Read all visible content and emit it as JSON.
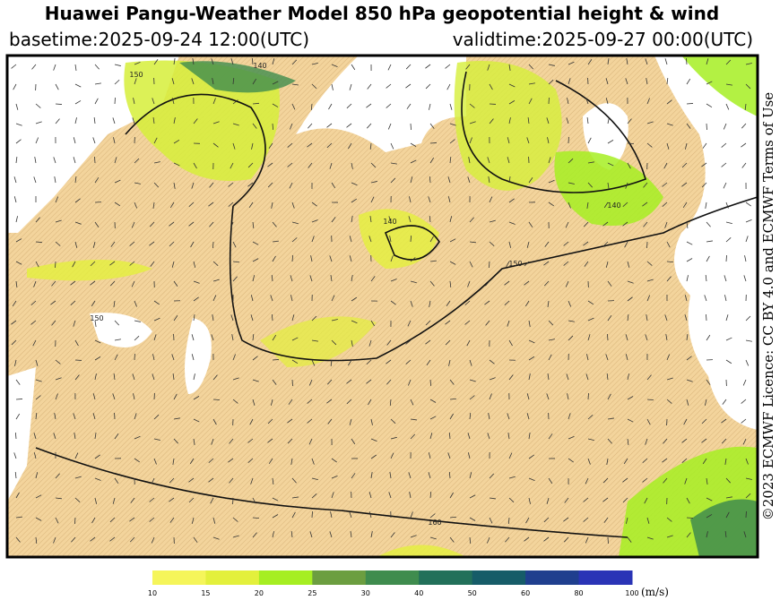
{
  "header": {
    "title": "Huawei Pangu-Weather Model 850 hPa geopotential height & wind",
    "basetime": "basetime:2025-09-24 12:00(UTC)",
    "validtime": "validtime:2025-09-27 00:00(UTC)"
  },
  "map": {
    "contour_labels": [
      "150",
      "140",
      "140",
      "150",
      "150",
      "140",
      "160"
    ]
  },
  "colorbar": {
    "ticks": [
      10,
      15,
      20,
      25,
      30,
      40,
      50,
      60,
      80,
      100
    ],
    "colors": [
      "#f5f55a",
      "#e3f03c",
      "#a6ee22",
      "#6c9e40",
      "#3f8c4e",
      "#22705a",
      "#165c68",
      "#1f3f8e",
      "#2a34b6"
    ],
    "unit": "(m/s)"
  },
  "licence": "©2023 ECMWF Licence: CC BY 4.0 and ECMWF Terms of Use"
}
